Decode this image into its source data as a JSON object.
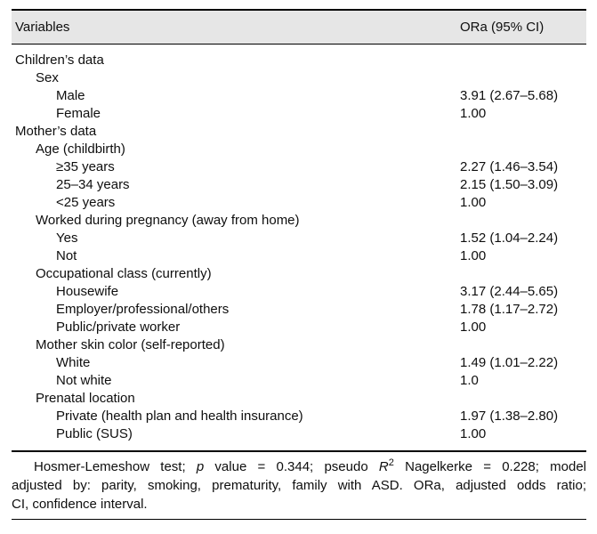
{
  "header": {
    "variables_label": "Variables",
    "ora_label": "ORa (95% CI)"
  },
  "table": {
    "rows": [
      {
        "label": "Children’s data",
        "value": ""
      },
      {
        "label": "Sex",
        "value": ""
      },
      {
        "label": "Male",
        "value": "3.91 (2.67–5.68)"
      },
      {
        "label": "Female",
        "value": "1.00"
      },
      {
        "label": "Mother’s data",
        "value": ""
      },
      {
        "label": "Age (childbirth)",
        "value": ""
      },
      {
        "label": "≥35 years",
        "value": "2.27 (1.46–3.54)"
      },
      {
        "label": "25–34 years",
        "value": "2.15 (1.50–3.09)"
      },
      {
        "label": "<25 years",
        "value": "1.00"
      },
      {
        "label": "Worked during pregnancy (away from home)",
        "value": ""
      },
      {
        "label": "Yes",
        "value": "1.52 (1.04–2.24)"
      },
      {
        "label": "Not",
        "value": "1.00"
      },
      {
        "label": "Occupational class (currently)",
        "value": ""
      },
      {
        "label": "Housewife",
        "value": "3.17 (2.44–5.65)"
      },
      {
        "label": "Employer/professional/others",
        "value": "1.78 (1.17–2.72)"
      },
      {
        "label": "Public/private worker",
        "value": "1.00"
      },
      {
        "label": "Mother skin color (self-reported)",
        "value": ""
      },
      {
        "label": "White",
        "value": "1.49 (1.01–2.22)"
      },
      {
        "label": "Not white",
        "value": "1.0"
      },
      {
        "label": "Prenatal location",
        "value": ""
      },
      {
        "label": "Private (health plan and health insurance)",
        "value": "1.97 (1.38–2.80)"
      },
      {
        "label": "Public (SUS)",
        "value": "1.00"
      }
    ]
  },
  "footnote": {
    "lines": [
      {
        "parts": [
          {
            "t": "Hosmer-Lemeshow test; "
          },
          {
            "t": "p",
            "i": true
          },
          {
            "t": " value = 0.344; pseudo "
          },
          {
            "t": "R",
            "i": true
          },
          {
            "t": "2",
            "sup": true
          },
          {
            "t": " Nagelkerke = 0.228; model"
          }
        ]
      },
      {
        "parts": [
          {
            "t": "adjusted by: parity, smoking, prematurity, family with ASD. ORa, adjusted odds ratio;"
          }
        ]
      },
      {
        "parts": [
          {
            "t": "CI, confidence interval."
          }
        ]
      }
    ]
  },
  "colors": {
    "header_background": "#e6e6e6",
    "rule": "#000000",
    "text": "#0e0e0e"
  }
}
